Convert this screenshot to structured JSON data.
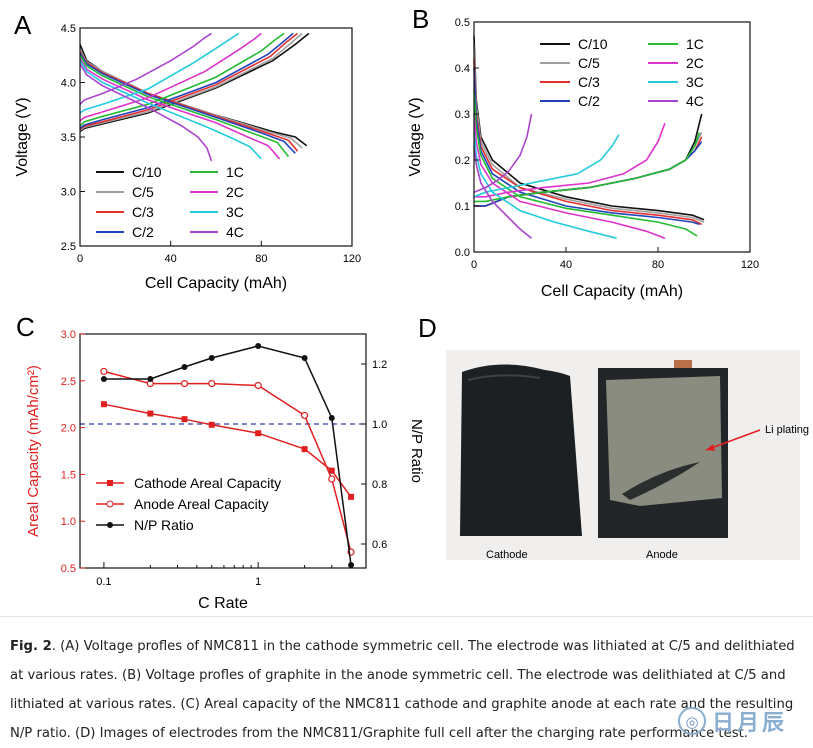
{
  "chart_data": [
    {
      "panel_label": "A",
      "type": "line",
      "xlabel": "Cell Capacity (mAh)",
      "ylabel": "Voltage (V)",
      "xlim": [
        0,
        120
      ],
      "ylim": [
        2.5,
        4.5
      ],
      "xticks": [
        0,
        40,
        80,
        120
      ],
      "yticks": [
        2.5,
        3.0,
        3.5,
        4.0,
        4.5
      ],
      "legend_position": "lower-left",
      "series": [
        {
          "name": "C/10",
          "color": "#111111",
          "discharge_x": [
            0,
            3,
            10,
            30,
            60,
            85,
            95,
            100
          ],
          "discharge_y": [
            4.35,
            4.2,
            4.1,
            3.9,
            3.7,
            3.55,
            3.5,
            3.42
          ],
          "charge_x": [
            0,
            2,
            10,
            30,
            60,
            85,
            95,
            101
          ],
          "charge_y": [
            3.55,
            3.58,
            3.62,
            3.72,
            3.95,
            4.2,
            4.35,
            4.45
          ]
        },
        {
          "name": "C/5",
          "color": "#a0a0a0",
          "discharge_x": [
            0,
            3,
            10,
            30,
            60,
            83,
            93,
            98
          ],
          "discharge_y": [
            4.3,
            4.19,
            4.1,
            3.9,
            3.7,
            3.55,
            3.49,
            3.4
          ],
          "charge_x": [
            0,
            2,
            10,
            30,
            60,
            85,
            93,
            98
          ],
          "charge_y": [
            3.56,
            3.59,
            3.63,
            3.73,
            3.96,
            4.22,
            4.36,
            4.45
          ]
        },
        {
          "name": "C/3",
          "color": "#e53030",
          "discharge_x": [
            0,
            3,
            10,
            30,
            60,
            82,
            92,
            96
          ],
          "discharge_y": [
            4.28,
            4.18,
            4.09,
            3.9,
            3.69,
            3.54,
            3.47,
            3.37
          ],
          "charge_x": [
            0,
            2,
            10,
            30,
            60,
            84,
            91,
            96
          ],
          "charge_y": [
            3.57,
            3.6,
            3.64,
            3.75,
            3.98,
            4.24,
            4.37,
            4.45
          ]
        },
        {
          "name": "C/2",
          "color": "#2244bb",
          "discharge_x": [
            0,
            3,
            10,
            30,
            60,
            81,
            90,
            95
          ],
          "discharge_y": [
            4.27,
            4.17,
            4.08,
            3.89,
            3.68,
            3.53,
            3.46,
            3.35
          ],
          "charge_x": [
            0,
            2,
            10,
            30,
            60,
            83,
            90,
            94
          ],
          "charge_y": [
            3.58,
            3.61,
            3.66,
            3.77,
            4.0,
            4.26,
            4.38,
            4.45
          ]
        },
        {
          "name": "1C",
          "color": "#22bb33",
          "discharge_x": [
            0,
            3,
            10,
            30,
            60,
            78,
            87,
            92
          ],
          "discharge_y": [
            4.25,
            4.15,
            4.06,
            3.87,
            3.66,
            3.52,
            3.45,
            3.32
          ],
          "charge_x": [
            0,
            2,
            10,
            30,
            60,
            80,
            86,
            90
          ],
          "charge_y": [
            3.6,
            3.64,
            3.69,
            3.8,
            4.05,
            4.29,
            4.39,
            4.45
          ]
        },
        {
          "name": "2C",
          "color": "#dd33cc",
          "discharge_x": [
            0,
            3,
            10,
            30,
            60,
            74,
            83,
            88
          ],
          "discharge_y": [
            4.22,
            4.12,
            4.03,
            3.84,
            3.63,
            3.5,
            3.42,
            3.3
          ],
          "charge_x": [
            0,
            2,
            10,
            30,
            55,
            70,
            77,
            80
          ],
          "charge_y": [
            3.65,
            3.68,
            3.73,
            3.86,
            4.1,
            4.3,
            4.4,
            4.45
          ]
        },
        {
          "name": "3C",
          "color": "#22ccdd",
          "discharge_x": [
            0,
            3,
            10,
            30,
            55,
            67,
            75,
            80
          ],
          "discharge_y": [
            4.2,
            4.1,
            4.0,
            3.81,
            3.6,
            3.49,
            3.41,
            3.3
          ],
          "charge_x": [
            0,
            2,
            10,
            30,
            50,
            62,
            67,
            70
          ],
          "charge_y": [
            3.72,
            3.75,
            3.8,
            3.94,
            4.18,
            4.34,
            4.41,
            4.45
          ]
        },
        {
          "name": "4C",
          "color": "#aa44cc",
          "discharge_x": [
            0,
            3,
            10,
            30,
            45,
            52,
            56,
            58
          ],
          "discharge_y": [
            4.17,
            4.07,
            3.97,
            3.77,
            3.6,
            3.5,
            3.4,
            3.28
          ],
          "charge_x": [
            0,
            2,
            10,
            25,
            40,
            50,
            55,
            58
          ],
          "charge_y": [
            3.8,
            3.84,
            3.9,
            4.03,
            4.2,
            4.33,
            4.41,
            4.45
          ]
        }
      ]
    },
    {
      "panel_label": "B",
      "type": "line",
      "xlabel": "Cell Capacity (mAh)",
      "ylabel": "Voltage (V)",
      "xlim": [
        0,
        120
      ],
      "ylim": [
        0.0,
        0.5
      ],
      "xticks": [
        0,
        40,
        80,
        120
      ],
      "yticks": [
        0.0,
        0.1,
        0.2,
        0.3,
        0.4,
        0.5
      ],
      "legend_position": "top-right",
      "series": [
        {
          "name": "C/10",
          "color": "#111111",
          "lith_x": [
            0,
            1,
            3,
            8,
            20,
            40,
            60,
            80,
            95,
            100
          ],
          "lith_y": [
            0.47,
            0.33,
            0.25,
            0.2,
            0.15,
            0.12,
            0.1,
            0.09,
            0.08,
            0.07
          ],
          "delith_x": [
            0,
            5,
            15,
            30,
            50,
            70,
            85,
            92,
            96,
            99
          ],
          "delith_y": [
            0.1,
            0.1,
            0.12,
            0.13,
            0.14,
            0.16,
            0.18,
            0.2,
            0.24,
            0.3
          ]
        },
        {
          "name": "C/5",
          "color": "#a0a0a0",
          "lith_x": [
            0,
            1,
            3,
            8,
            20,
            40,
            60,
            80,
            95,
            100
          ],
          "lith_y": [
            0.45,
            0.32,
            0.24,
            0.19,
            0.14,
            0.115,
            0.095,
            0.085,
            0.075,
            0.065
          ],
          "delith_x": [
            0,
            5,
            15,
            30,
            50,
            70,
            85,
            92,
            96,
            99
          ],
          "delith_y": [
            0.1,
            0.1,
            0.12,
            0.13,
            0.14,
            0.16,
            0.18,
            0.2,
            0.23,
            0.26
          ]
        },
        {
          "name": "C/3",
          "color": "#e53030",
          "lith_x": [
            0,
            1,
            3,
            8,
            20,
            40,
            60,
            80,
            95,
            99
          ],
          "lith_y": [
            0.42,
            0.3,
            0.23,
            0.18,
            0.14,
            0.11,
            0.09,
            0.08,
            0.07,
            0.06
          ],
          "delith_x": [
            0,
            5,
            15,
            30,
            50,
            70,
            85,
            92,
            96,
            99
          ],
          "delith_y": [
            0.1,
            0.1,
            0.12,
            0.13,
            0.14,
            0.16,
            0.18,
            0.2,
            0.22,
            0.25
          ]
        },
        {
          "name": "C/2",
          "color": "#2244bb",
          "lith_x": [
            0,
            1,
            3,
            8,
            20,
            40,
            60,
            80,
            95,
            98
          ],
          "lith_y": [
            0.4,
            0.29,
            0.22,
            0.17,
            0.13,
            0.1,
            0.085,
            0.075,
            0.065,
            0.06
          ],
          "delith_x": [
            0,
            5,
            15,
            30,
            50,
            70,
            85,
            92,
            96,
            99
          ],
          "delith_y": [
            0.1,
            0.1,
            0.12,
            0.13,
            0.14,
            0.16,
            0.18,
            0.2,
            0.22,
            0.24
          ]
        },
        {
          "name": "1C",
          "color": "#22bb33",
          "lith_x": [
            0,
            1,
            3,
            8,
            20,
            40,
            60,
            80,
            92,
            97
          ],
          "lith_y": [
            0.35,
            0.27,
            0.21,
            0.16,
            0.12,
            0.095,
            0.08,
            0.065,
            0.05,
            0.035
          ],
          "delith_x": [
            0,
            5,
            15,
            30,
            50,
            70,
            85,
            92,
            96,
            98
          ],
          "delith_y": [
            0.11,
            0.11,
            0.12,
            0.13,
            0.14,
            0.16,
            0.18,
            0.2,
            0.23,
            0.26
          ]
        },
        {
          "name": "2C",
          "color": "#dd33cc",
          "lith_x": [
            0,
            1,
            3,
            8,
            20,
            40,
            60,
            75,
            83
          ],
          "lith_y": [
            0.3,
            0.24,
            0.19,
            0.15,
            0.11,
            0.085,
            0.065,
            0.045,
            0.03
          ],
          "delith_x": [
            0,
            5,
            15,
            30,
            50,
            65,
            75,
            80,
            83
          ],
          "delith_y": [
            0.12,
            0.12,
            0.13,
            0.14,
            0.15,
            0.17,
            0.2,
            0.24,
            0.28
          ]
        },
        {
          "name": "3C",
          "color": "#22ccdd",
          "lith_x": [
            0,
            1,
            3,
            8,
            20,
            35,
            50,
            62
          ],
          "lith_y": [
            0.26,
            0.21,
            0.17,
            0.13,
            0.09,
            0.065,
            0.045,
            0.03
          ],
          "delith_x": [
            0,
            5,
            15,
            30,
            45,
            55,
            60,
            63
          ],
          "delith_y": [
            0.12,
            0.13,
            0.14,
            0.155,
            0.17,
            0.2,
            0.23,
            0.255
          ]
        },
        {
          "name": "4C",
          "color": "#aa44cc",
          "lith_x": [
            0,
            1,
            3,
            8,
            14,
            20,
            25
          ],
          "lith_y": [
            0.23,
            0.19,
            0.15,
            0.11,
            0.08,
            0.05,
            0.03
          ],
          "delith_x": [
            0,
            5,
            10,
            15,
            20,
            23,
            25
          ],
          "delith_y": [
            0.13,
            0.14,
            0.155,
            0.175,
            0.21,
            0.25,
            0.3
          ]
        }
      ]
    },
    {
      "panel_label": "C",
      "type": "line",
      "xlabel": "C Rate",
      "ylabel": "Areal Capacity (mAh/cm²)",
      "y2label": "N/P Ratio",
      "x_scale": "log",
      "xlim": [
        0.07,
        5
      ],
      "ylim": [
        0.5,
        3.0
      ],
      "y2lim": [
        0.52,
        1.3
      ],
      "xticks": [
        0.1,
        1
      ],
      "xtick_labels": [
        "0.1",
        "1"
      ],
      "yticks": [
        0.5,
        1.0,
        1.5,
        2.0,
        2.5,
        3.0
      ],
      "ytick_labels": [
        "0.5",
        "1.0",
        "1.5",
        "2.0",
        "2.5",
        "3.0"
      ],
      "y2ticks": [
        0.6,
        0.8,
        1.0,
        1.2
      ],
      "y2tick_labels": [
        "0.6",
        "0.8",
        "1.0",
        "1.2"
      ],
      "reference_line_y2": 1.0,
      "legend_position": "lower-left",
      "x": [
        0.1,
        0.2,
        0.333,
        0.5,
        1,
        2,
        3,
        4
      ],
      "series": [
        {
          "name": "Cathode Areal Capacity",
          "axis": "left",
          "marker": "filled-square",
          "color": "#e02020",
          "values": [
            2.25,
            2.15,
            2.09,
            2.03,
            1.94,
            1.77,
            1.54,
            1.26
          ]
        },
        {
          "name": "Anode Areal Capacity",
          "axis": "left",
          "marker": "open-circle",
          "color": "#e02020",
          "values": [
            2.6,
            2.47,
            2.47,
            2.47,
            2.45,
            2.13,
            1.45,
            0.67
          ]
        },
        {
          "name": "N/P Ratio",
          "axis": "right",
          "marker": "filled-circle",
          "color": "#111111",
          "values": [
            1.15,
            1.15,
            1.19,
            1.22,
            1.26,
            1.22,
            1.02,
            0.53
          ]
        }
      ]
    }
  ],
  "panelD": {
    "label": "D",
    "cathode_label": "Cathode",
    "anode_label": "Anode",
    "annotation": "Li plating"
  },
  "caption": {
    "figure_label": "Fig. 2",
    "text": ". (A) Voltage profles of NMC811 in the cathode symmetric cell. The electrode was lithiated at C/5 and delithiated at various rates. (B) Voltage profles of graphite in the anode symmetric cell. The electrode was delithiated at C/5 and lithiated at various rates. (C) Areal capacity of the NMC811 cathode and graphite anode at each rate and the resulting N/P ratio. (D) Images of electrodes from the NMC811/Graphite full cell after the charging rate performance test."
  },
  "watermark": {
    "text": "日月辰"
  }
}
